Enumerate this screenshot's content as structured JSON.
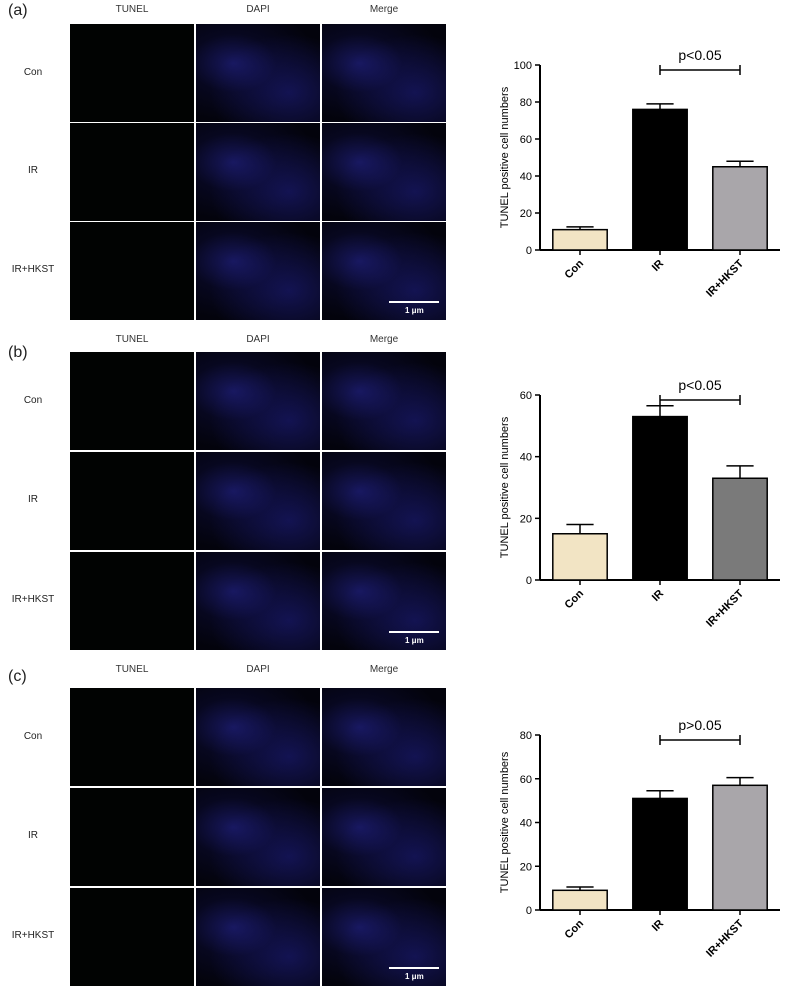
{
  "panels": [
    {
      "label": "(a)",
      "columns": [
        "TUNEL",
        "DAPI",
        "Merge"
      ],
      "rows": [
        "Con",
        "IR",
        "IR+HKST"
      ],
      "scale_label": "1 μm",
      "chart_data": {
        "type": "bar",
        "categories": [
          "Con",
          "IR",
          "IR+HKST"
        ],
        "values": [
          11,
          76,
          45
        ],
        "errors": [
          1.5,
          3,
          3
        ],
        "ylabel": "TUNEL positive cell numbers",
        "ylim": [
          0,
          100
        ],
        "yticks": [
          "0",
          "20",
          "40",
          "60",
          "80",
          "100"
        ],
        "bar_colors": [
          "#f2e4c4",
          "#000000",
          "#a9a6aa"
        ],
        "annotation": "p<0.05",
        "annotation_span": [
          1,
          2
        ]
      }
    },
    {
      "label": "(b)",
      "columns": [
        "TUNEL",
        "DAPI",
        "Merge"
      ],
      "rows": [
        "Con",
        "IR",
        "IR+HKST"
      ],
      "scale_label": "1 μm",
      "chart_data": {
        "type": "bar",
        "categories": [
          "Con",
          "IR",
          "IR+HKST"
        ],
        "values": [
          15,
          53,
          33
        ],
        "errors": [
          3,
          3.5,
          4
        ],
        "ylabel": "TUNEL positive cell numbers",
        "ylim": [
          0,
          60
        ],
        "yticks": [
          "0",
          "20",
          "40",
          "60"
        ],
        "bar_colors": [
          "#f2e4c4",
          "#000000",
          "#7a7a7a"
        ],
        "annotation": "p<0.05",
        "annotation_span": [
          1,
          2
        ]
      }
    },
    {
      "label": "(c)",
      "columns": [
        "TUNEL",
        "DAPI",
        "Merge"
      ],
      "rows": [
        "Con",
        "IR",
        "IR+HKST"
      ],
      "scale_label": "1 μm",
      "chart_data": {
        "type": "bar",
        "categories": [
          "Con",
          "IR",
          "IR+HKST"
        ],
        "values": [
          9,
          51,
          57
        ],
        "errors": [
          1.5,
          3.5,
          3.5
        ],
        "ylabel": "TUNEL positive cell numbers",
        "ylim": [
          0,
          80
        ],
        "yticks": [
          "0",
          "20",
          "40",
          "60",
          "80"
        ],
        "bar_colors": [
          "#f2e4c4",
          "#000000",
          "#a9a6aa"
        ],
        "annotation": "p>0.05",
        "annotation_span": [
          1,
          2
        ]
      }
    }
  ]
}
